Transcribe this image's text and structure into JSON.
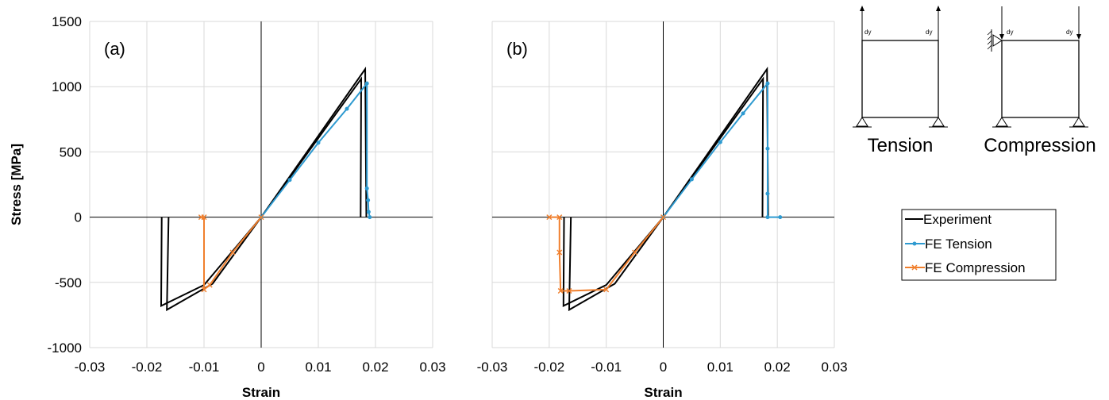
{
  "chart_data": [
    {
      "type": "line",
      "panel_label": "(a)",
      "xlabel": "Strain",
      "ylabel": "Stress [MPa]",
      "xlim": [
        -0.03,
        0.03
      ],
      "ylim": [
        -1000,
        1500
      ],
      "x_ticks": [
        "-0.03",
        "-0.02",
        "-0.01",
        "0",
        "0.01",
        "0.02",
        "0.03"
      ],
      "y_ticks": [
        "1500",
        "1000",
        "500",
        "0",
        "-500",
        "-1000"
      ],
      "grid": true,
      "series": [
        {
          "name": "Experiment",
          "color": "#000000",
          "marker": "none",
          "segments": [
            [
              [
                0,
                0
              ],
              [
                0.0182,
                1135
              ],
              [
                0.0184,
                0
              ]
            ],
            [
              [
                0,
                0
              ],
              [
                0.0175,
                1060
              ],
              [
                0.0174,
                0
              ]
            ],
            [
              [
                0,
                0
              ],
              [
                -0.0085,
                -510
              ],
              [
                -0.0165,
                -710
              ],
              [
                -0.0162,
                0
              ]
            ],
            [
              [
                0,
                0
              ],
              [
                -0.01,
                -520
              ],
              [
                -0.0175,
                -680
              ],
              [
                -0.0174,
                0
              ]
            ]
          ]
        },
        {
          "name": "FE Tension",
          "color": "#2E9AD0",
          "marker": "dot",
          "points": [
            [
              0,
              0
            ],
            [
              0.005,
              285
            ],
            [
              0.01,
              570
            ],
            [
              0.015,
              830
            ],
            [
              0.0185,
              1025
            ],
            [
              0.0185,
              220
            ],
            [
              0.0187,
              130
            ],
            [
              0.0188,
              40
            ],
            [
              0.019,
              0
            ]
          ]
        },
        {
          "name": "FE Compression",
          "color": "#F07F2D",
          "marker": "x",
          "points": [
            [
              0,
              0
            ],
            [
              -0.005,
              -270
            ],
            [
              -0.009,
              -520
            ],
            [
              -0.01,
              -555
            ],
            [
              -0.01,
              0
            ],
            [
              -0.0105,
              0
            ]
          ]
        }
      ]
    },
    {
      "type": "line",
      "panel_label": "(b)",
      "xlabel": "Strain",
      "ylabel": "",
      "xlim": [
        -0.03,
        0.03
      ],
      "ylim": [
        -1000,
        1500
      ],
      "x_ticks": [
        "-0.03",
        "-0.02",
        "-0.01",
        "0",
        "0.01",
        "0.02",
        "0.03"
      ],
      "y_ticks": [],
      "grid": true,
      "series": [
        {
          "name": "Experiment",
          "color": "#000000",
          "marker": "none",
          "segments": [
            [
              [
                0,
                0
              ],
              [
                0.0182,
                1135
              ],
              [
                0.0184,
                0
              ]
            ],
            [
              [
                0,
                0
              ],
              [
                0.0175,
                1060
              ],
              [
                0.0174,
                0
              ]
            ],
            [
              [
                0,
                0
              ],
              [
                -0.0085,
                -510
              ],
              [
                -0.0165,
                -710
              ],
              [
                -0.0162,
                0
              ]
            ],
            [
              [
                0,
                0
              ],
              [
                -0.01,
                -520
              ],
              [
                -0.0175,
                -680
              ],
              [
                -0.0174,
                0
              ]
            ]
          ]
        },
        {
          "name": "FE Tension",
          "color": "#2E9AD0",
          "marker": "dot",
          "points": [
            [
              0,
              0
            ],
            [
              0.005,
              290
            ],
            [
              0.01,
              575
            ],
            [
              0.014,
              795
            ],
            [
              0.0183,
              1025
            ],
            [
              0.0183,
              525
            ],
            [
              0.0183,
              180
            ],
            [
              0.0183,
              0
            ],
            [
              0.0205,
              0
            ]
          ]
        },
        {
          "name": "FE Compression",
          "color": "#F07F2D",
          "marker": "x",
          "points": [
            [
              0,
              0
            ],
            [
              -0.005,
              -270
            ],
            [
              -0.01,
              -555
            ],
            [
              -0.0165,
              -565
            ],
            [
              -0.018,
              -565
            ],
            [
              -0.0182,
              -270
            ],
            [
              -0.0182,
              0
            ],
            [
              -0.02,
              0
            ]
          ]
        }
      ]
    }
  ],
  "legend": {
    "entries": [
      {
        "label": "Experiment",
        "color": "#000000",
        "marker": "none"
      },
      {
        "label": "FE Tension",
        "color": "#2E9AD0",
        "marker": "dot"
      },
      {
        "label": "FE Compression",
        "color": "#F07F2D",
        "marker": "x"
      }
    ]
  },
  "schematics": {
    "tension": {
      "caption": "Tension",
      "load_left": "dy",
      "load_right": "dy"
    },
    "compression": {
      "caption": "Compression",
      "load_left": "dy",
      "load_right": "dy"
    }
  }
}
